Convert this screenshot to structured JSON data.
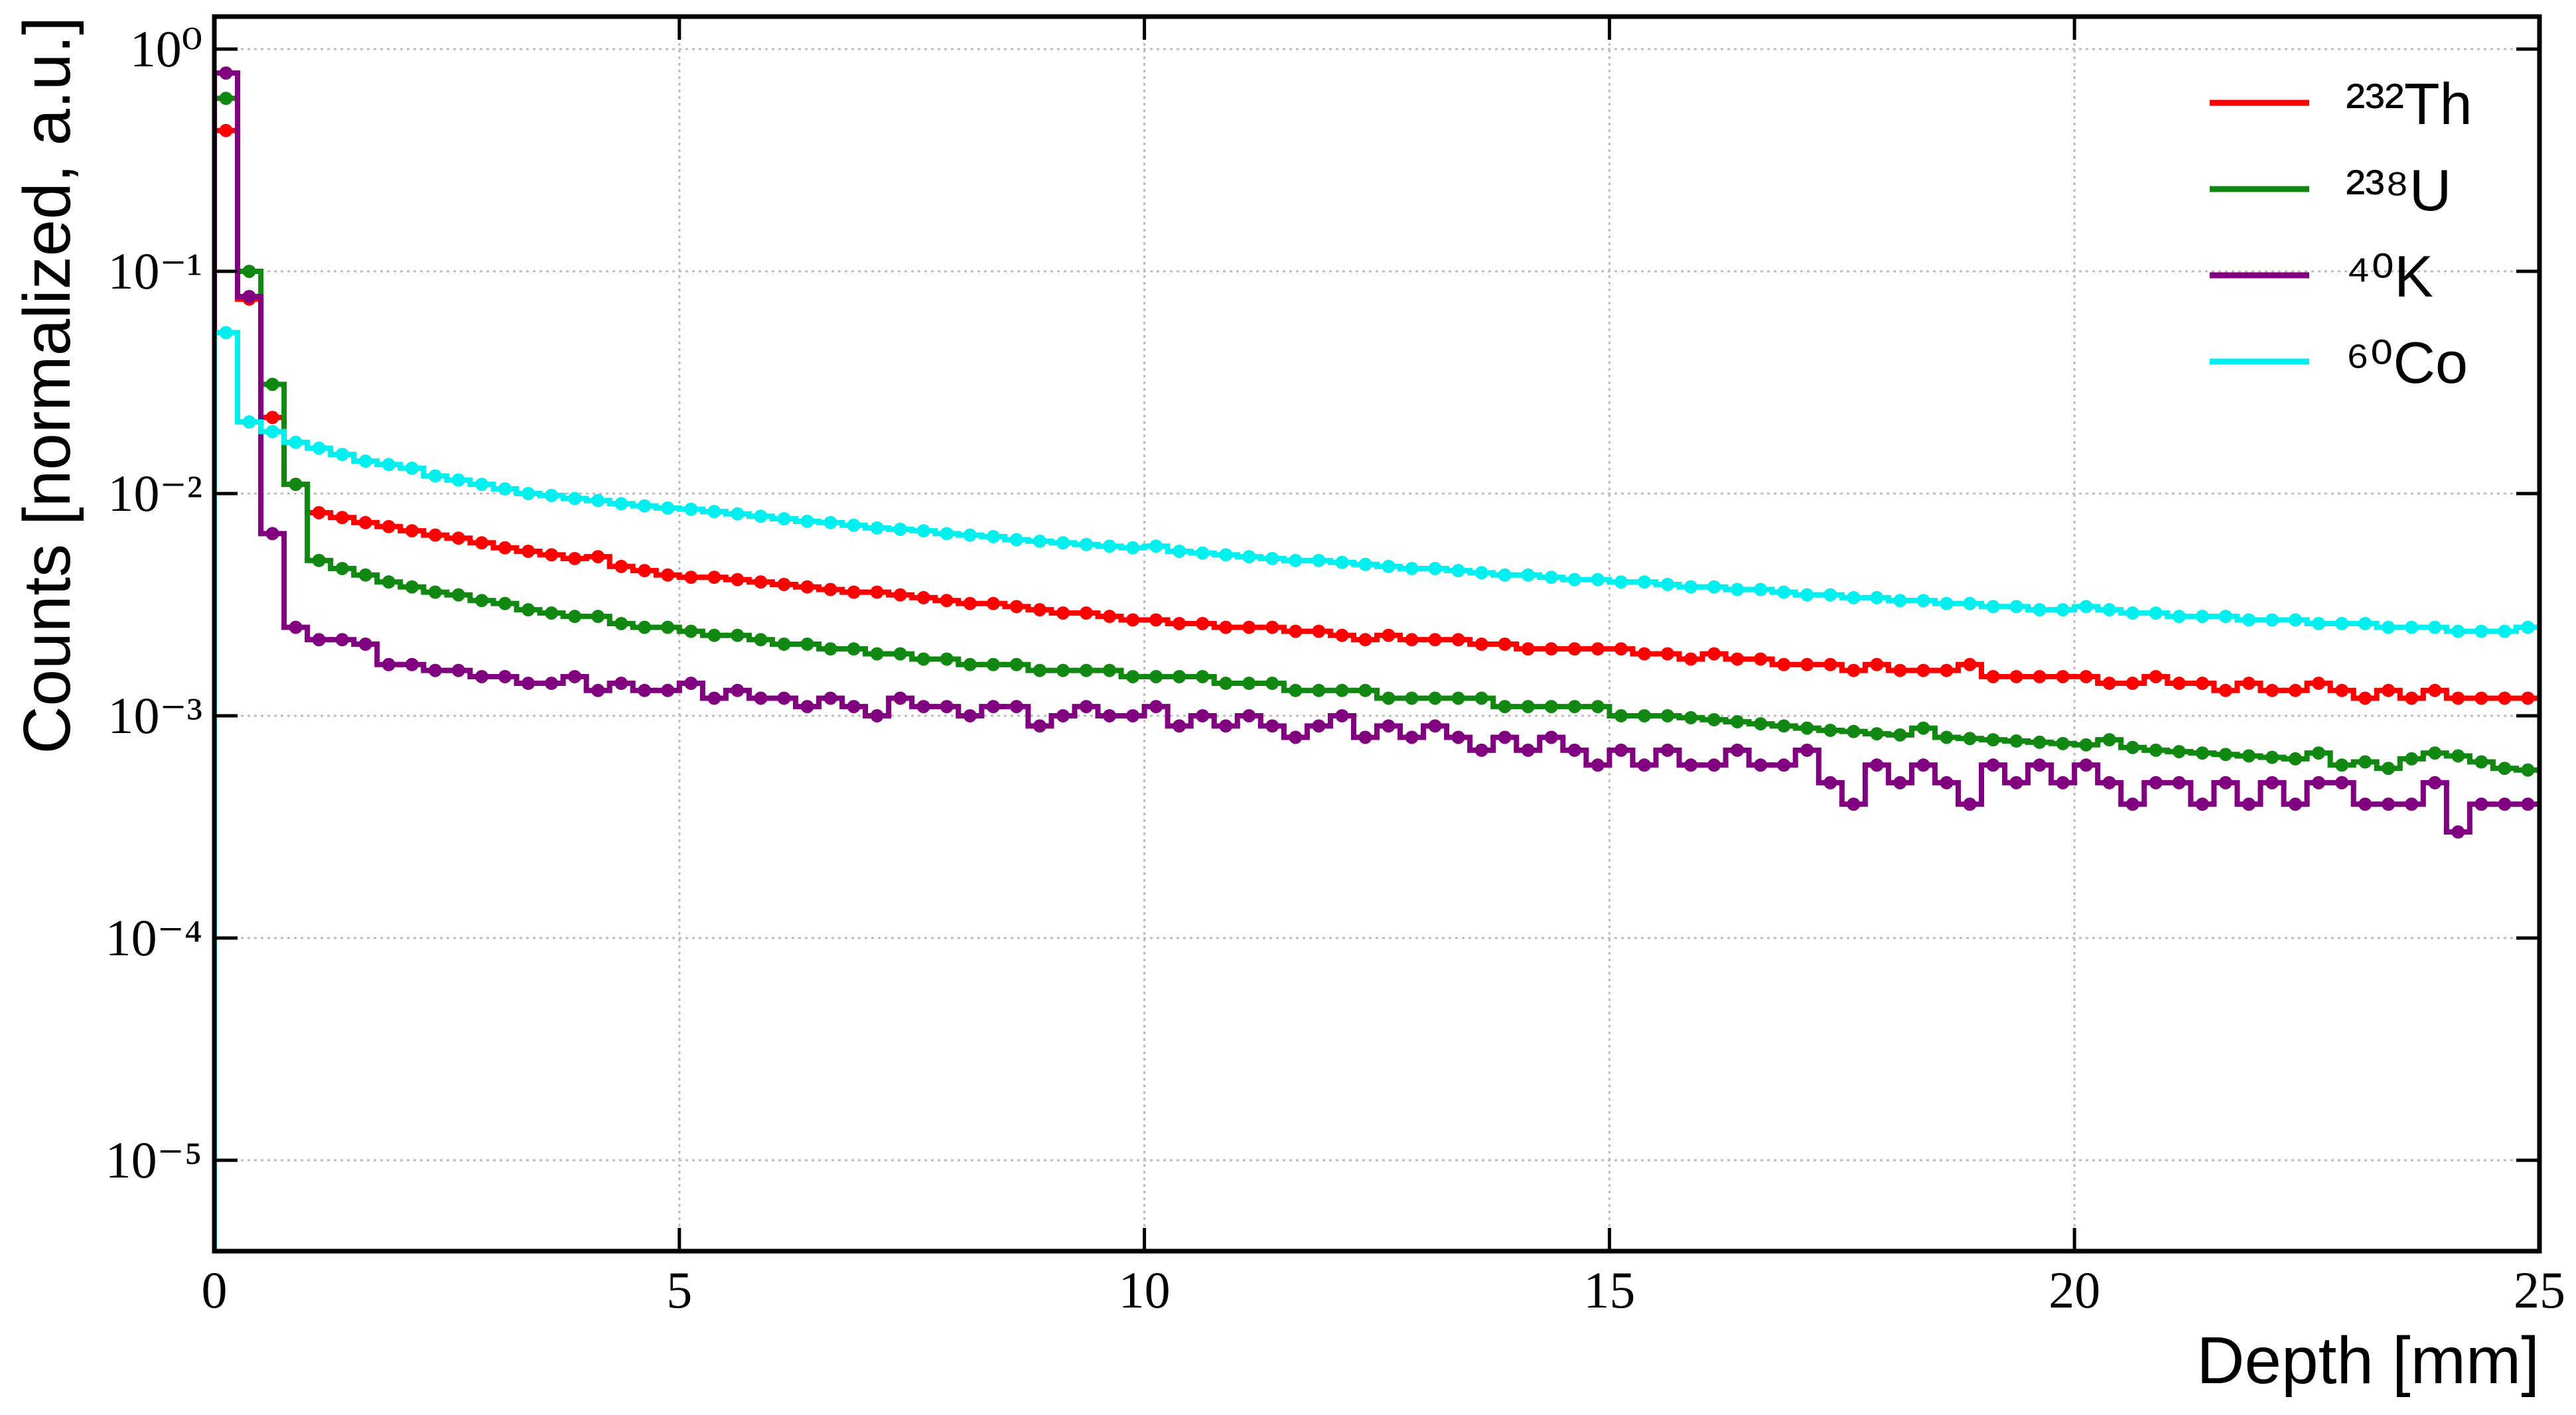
{
  "chart_data": {
    "type": "step-histogram",
    "xlabel": "Depth [mm]",
    "ylabel": "Counts [normalized, a.u.]",
    "xlim": [
      0,
      25
    ],
    "xticks": [
      0,
      5,
      10,
      15,
      20,
      25
    ],
    "ylim": [
      3.9e-06,
      1.4
    ],
    "log_y": true,
    "grid": true,
    "legend": "upper right",
    "yticks": [
      {
        "value": 1e-05,
        "label": "10⁻⁵"
      },
      {
        "value": 0.0001,
        "label": "10⁻⁴"
      },
      {
        "value": 0.001,
        "label": "10⁻³"
      },
      {
        "value": 0.01,
        "label": "10⁻²"
      },
      {
        "value": 0.1,
        "label": "10⁻¹"
      },
      {
        "value": 1,
        "label": "10⁰"
      }
    ],
    "bins": [
      0,
      0.25,
      0.5,
      0.75,
      1,
      1.25,
      1.5,
      1.75,
      2,
      2.25,
      2.5,
      2.75,
      3,
      3.25,
      3.5,
      3.75,
      4,
      4.25,
      4.5,
      4.75,
      5,
      5.25,
      5.5,
      5.75,
      6,
      6.25,
      6.5,
      6.75,
      7,
      7.25,
      7.5,
      7.75,
      8,
      8.25,
      8.5,
      8.75,
      9,
      9.25,
      9.5,
      9.75,
      10,
      10.25,
      10.5,
      10.75,
      11,
      11.25,
      11.5,
      11.75,
      12,
      12.25,
      12.5,
      12.75,
      13,
      13.25,
      13.5,
      13.75,
      14,
      14.25,
      14.5,
      14.75,
      15,
      15.25,
      15.5,
      15.75,
      16,
      16.25,
      16.5,
      16.75,
      17,
      17.25,
      17.5,
      17.75,
      18,
      18.25,
      18.5,
      18.75,
      19,
      19.25,
      19.5,
      19.75,
      20,
      20.25,
      20.5,
      20.75,
      21,
      21.25,
      21.5,
      21.75,
      22,
      22.25,
      22.5,
      22.75,
      23,
      23.25,
      23.5,
      23.75,
      24,
      24.25,
      24.5,
      24.75,
      25
    ],
    "series": [
      {
        "name": "²³²Th",
        "color": "#ff0000",
        "values": [
          0.43,
          0.075,
          0.022,
          0.011,
          0.0082,
          0.0078,
          0.0074,
          0.0071,
          0.0068,
          0.0065,
          0.0063,
          0.006,
          0.0057,
          0.0055,
          0.0053,
          0.0051,
          0.0052,
          0.0047,
          0.0045,
          0.0043,
          0.0042,
          0.0042,
          0.0041,
          0.004,
          0.0039,
          0.0038,
          0.0037,
          0.0036,
          0.0036,
          0.0035,
          0.0034,
          0.0033,
          0.0032,
          0.0032,
          0.0031,
          0.003,
          0.0029,
          0.0029,
          0.0028,
          0.0027,
          0.0027,
          0.0026,
          0.0026,
          0.0025,
          0.0025,
          0.0025,
          0.0024,
          0.0024,
          0.0023,
          0.0022,
          0.0023,
          0.0022,
          0.0022,
          0.0022,
          0.0021,
          0.0021,
          0.002,
          0.002,
          0.002,
          0.002,
          0.002,
          0.0019,
          0.0019,
          0.0018,
          0.0019,
          0.0018,
          0.0018,
          0.0017,
          0.0017,
          0.0017,
          0.0016,
          0.0017,
          0.0016,
          0.0016,
          0.0016,
          0.0017,
          0.0015,
          0.0015,
          0.0015,
          0.0015,
          0.0015,
          0.0014,
          0.0014,
          0.0015,
          0.0014,
          0.0014,
          0.0013,
          0.0014,
          0.0013,
          0.0013,
          0.0014,
          0.0013,
          0.0012,
          0.0013,
          0.0012,
          0.0013,
          0.0012,
          0.0012,
          0.0012,
          0.0012
        ]
      },
      {
        "name": "²³⁸U",
        "color": "#118811",
        "values": [
          0.6,
          0.1,
          0.031,
          0.011,
          0.005,
          0.0046,
          0.0043,
          0.004,
          0.0038,
          0.0036,
          0.0035,
          0.0033,
          0.0032,
          0.003,
          0.0029,
          0.0028,
          0.0028,
          0.0026,
          0.0025,
          0.0025,
          0.0024,
          0.0023,
          0.0023,
          0.0022,
          0.0021,
          0.0021,
          0.002,
          0.002,
          0.0019,
          0.0019,
          0.0018,
          0.0018,
          0.0017,
          0.0017,
          0.0017,
          0.0016,
          0.0016,
          0.0016,
          0.0016,
          0.0015,
          0.0015,
          0.0015,
          0.0015,
          0.0014,
          0.0014,
          0.0014,
          0.0013,
          0.0013,
          0.0013,
          0.0013,
          0.0012,
          0.0012,
          0.0012,
          0.0012,
          0.0012,
          0.0011,
          0.0011,
          0.0011,
          0.0011,
          0.0011,
          0.001,
          0.001,
          0.001,
          0.00098,
          0.00096,
          0.00094,
          0.00092,
          0.0009,
          0.00088,
          0.00086,
          0.00085,
          0.00083,
          0.00082,
          0.00088,
          0.0008,
          0.00079,
          0.00078,
          0.00077,
          0.00076,
          0.00075,
          0.00074,
          0.00078,
          0.00072,
          0.0007,
          0.00069,
          0.00068,
          0.00067,
          0.00066,
          0.00065,
          0.00064,
          0.00068,
          0.0006,
          0.00062,
          0.00058,
          0.00064,
          0.00068,
          0.00066,
          0.00062,
          0.00058,
          0.00057
        ]
      },
      {
        "name": "⁴⁰K",
        "color": "#800080",
        "values": [
          0.78,
          0.077,
          0.0066,
          0.0025,
          0.0022,
          0.0022,
          0.0021,
          0.0017,
          0.0017,
          0.0016,
          0.0016,
          0.0015,
          0.0015,
          0.0014,
          0.0014,
          0.0015,
          0.0013,
          0.0014,
          0.0013,
          0.0013,
          0.0014,
          0.0012,
          0.0013,
          0.0012,
          0.0012,
          0.0011,
          0.0012,
          0.0011,
          0.001,
          0.0012,
          0.0011,
          0.0011,
          0.001,
          0.0011,
          0.0011,
          0.0009,
          0.001,
          0.0011,
          0.001,
          0.001,
          0.0011,
          0.0009,
          0.001,
          0.0009,
          0.001,
          0.0009,
          0.0008,
          0.0009,
          0.001,
          0.0008,
          0.0009,
          0.0008,
          0.0009,
          0.0008,
          0.0007,
          0.0008,
          0.0007,
          0.0008,
          0.0007,
          0.0006,
          0.0007,
          0.0006,
          0.0007,
          0.0006,
          0.0006,
          0.0007,
          0.0006,
          0.0006,
          0.0007,
          0.0005,
          0.0004,
          0.0006,
          0.0005,
          0.0006,
          0.0005,
          0.0004,
          0.0006,
          0.0005,
          0.0006,
          0.0005,
          0.0006,
          0.0005,
          0.0004,
          0.0005,
          0.0005,
          0.0004,
          0.0005,
          0.0004,
          0.0005,
          0.0004,
          0.0005,
          0.0005,
          0.0004,
          0.0004,
          0.0004,
          0.0005,
          0.0003,
          0.0004,
          0.0004,
          0.0004
        ]
      },
      {
        "name": "⁶⁰Co",
        "color": "#00f0f0",
        "values": [
          0.053,
          0.021,
          0.019,
          0.017,
          0.016,
          0.015,
          0.014,
          0.0135,
          0.013,
          0.012,
          0.0115,
          0.011,
          0.0105,
          0.01,
          0.0098,
          0.0095,
          0.0093,
          0.009,
          0.0088,
          0.0086,
          0.0085,
          0.0083,
          0.0081,
          0.0079,
          0.0077,
          0.0075,
          0.0074,
          0.0072,
          0.007,
          0.0069,
          0.0068,
          0.0066,
          0.0065,
          0.0064,
          0.0062,
          0.0061,
          0.006,
          0.0059,
          0.0058,
          0.0057,
          0.0058,
          0.0055,
          0.0054,
          0.0053,
          0.0052,
          0.0051,
          0.005,
          0.005,
          0.0049,
          0.0048,
          0.0047,
          0.0046,
          0.0046,
          0.0045,
          0.0044,
          0.0043,
          0.0043,
          0.0042,
          0.0041,
          0.0041,
          0.004,
          0.004,
          0.0039,
          0.0038,
          0.0038,
          0.0037,
          0.0037,
          0.0036,
          0.0035,
          0.0035,
          0.0034,
          0.0034,
          0.0033,
          0.0033,
          0.0032,
          0.0032,
          0.0031,
          0.0031,
          0.003,
          0.003,
          0.0031,
          0.003,
          0.0029,
          0.0029,
          0.0028,
          0.0028,
          0.0028,
          0.0027,
          0.0027,
          0.0027,
          0.0026,
          0.0026,
          0.0026,
          0.0025,
          0.0025,
          0.0025,
          0.0024,
          0.0024,
          0.0024,
          0.0025
        ]
      }
    ]
  }
}
